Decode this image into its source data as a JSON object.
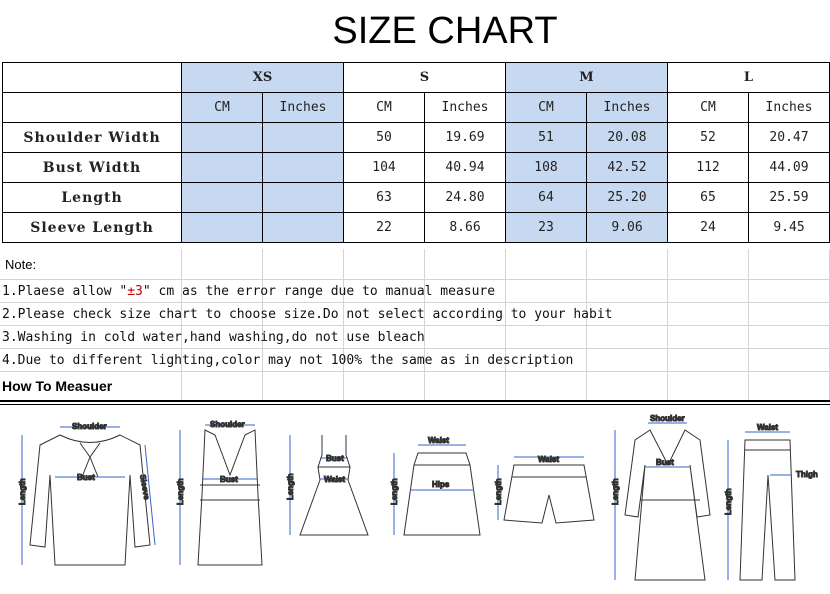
{
  "title": "SIZE CHART",
  "sizes": [
    "XS",
    "S",
    "M",
    "L"
  ],
  "units": [
    "CM",
    "Inches"
  ],
  "rows": [
    {
      "label": "Shoulder Width",
      "values": [
        "",
        "",
        "50",
        "19.69",
        "51",
        "20.08",
        "52",
        "20.47"
      ]
    },
    {
      "label": "Bust Width",
      "values": [
        "",
        "",
        "104",
        "40.94",
        "108",
        "42.52",
        "112",
        "44.09"
      ]
    },
    {
      "label": "Length",
      "values": [
        "",
        "",
        "63",
        "24.80",
        "64",
        "25.20",
        "65",
        "25.59"
      ]
    },
    {
      "label": "Sleeve Length",
      "values": [
        "",
        "",
        "22",
        "8.66",
        "23",
        "9.06",
        "24",
        "9.45"
      ]
    }
  ],
  "highlight_color": "#c6d9f1",
  "note_heading": "Note:",
  "notes": {
    "n1_pre": "1.Plaese allow \"",
    "n1_red": "±3",
    "n1_post": "\" cm as the error range due to manual measure",
    "n2": "2.Please check size chart to choose size.Do not select according to your habit",
    "n3": "3.Washing in cold water,hand washing,do not use bleach",
    "n4": "4.Due to different lighting,color may not 100% the same as in description"
  },
  "how_to_measure": "How To Measuer",
  "illustrations": [
    {
      "garment": "blouse",
      "labels": [
        "Shoulder",
        "Bust",
        "Sleeve",
        "Length"
      ]
    },
    {
      "garment": "tank-top",
      "labels": [
        "Shoulder",
        "Bust",
        "Length"
      ]
    },
    {
      "garment": "dress",
      "labels": [
        "Bust",
        "Waist",
        "Length"
      ]
    },
    {
      "garment": "skirt",
      "labels": [
        "Waist",
        "Hips",
        "Length"
      ]
    },
    {
      "garment": "shorts",
      "labels": [
        "Waist",
        "Length"
      ]
    },
    {
      "garment": "coat",
      "labels": [
        "Shoulder",
        "Bust",
        "Length"
      ]
    },
    {
      "garment": "pants",
      "labels": [
        "Waist",
        "Thigh",
        "Length"
      ]
    }
  ]
}
